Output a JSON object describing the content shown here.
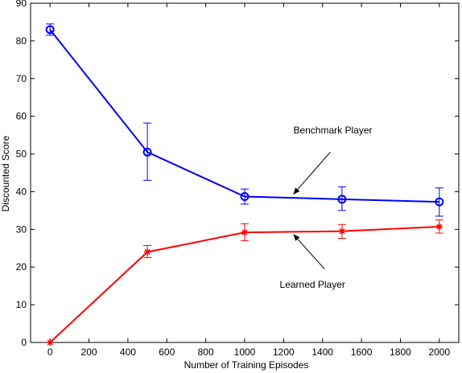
{
  "chart_data": {
    "type": "line",
    "title": "",
    "xlabel": "Number of Training Episodes",
    "ylabel": "Discounted Score",
    "xlim": [
      -100,
      2100
    ],
    "ylim": [
      0,
      90
    ],
    "xticks": [
      0,
      200,
      400,
      600,
      800,
      1000,
      1200,
      1400,
      1600,
      1800,
      2000
    ],
    "yticks": [
      0,
      10,
      20,
      30,
      40,
      50,
      60,
      70,
      80,
      90
    ],
    "grid": false,
    "legend": "none",
    "x": [
      0,
      500,
      1000,
      1500,
      2000
    ],
    "series": [
      {
        "name": "Benchmark Player",
        "color": "#0000ff",
        "marker": "circle",
        "values": [
          83,
          50.5,
          38.7,
          38,
          37.3
        ],
        "err_low": [
          81.5,
          43,
          36.7,
          35,
          33.5
        ],
        "err_high": [
          84.5,
          58.2,
          40.7,
          41.3,
          41
        ]
      },
      {
        "name": "Learned Player",
        "color": "#ff0000",
        "marker": "star",
        "values": [
          0,
          24,
          29.2,
          29.5,
          30.7
        ],
        "err_low": [
          0,
          22.5,
          27,
          27.6,
          29
        ],
        "err_high": [
          0,
          25.7,
          31.5,
          31.3,
          32.5
        ]
      }
    ],
    "annotations": [
      {
        "text": "Benchmark Player",
        "label_x": 1250,
        "label_y": 55.5,
        "arrow_from": [
          1440,
          50.5
        ],
        "arrow_to": [
          1250,
          39.3
        ]
      },
      {
        "text": "Learned Player",
        "label_x": 1180,
        "label_y": 14.5,
        "arrow_from": [
          1410,
          19.5
        ],
        "arrow_to": [
          1250,
          28.7
        ]
      }
    ]
  }
}
